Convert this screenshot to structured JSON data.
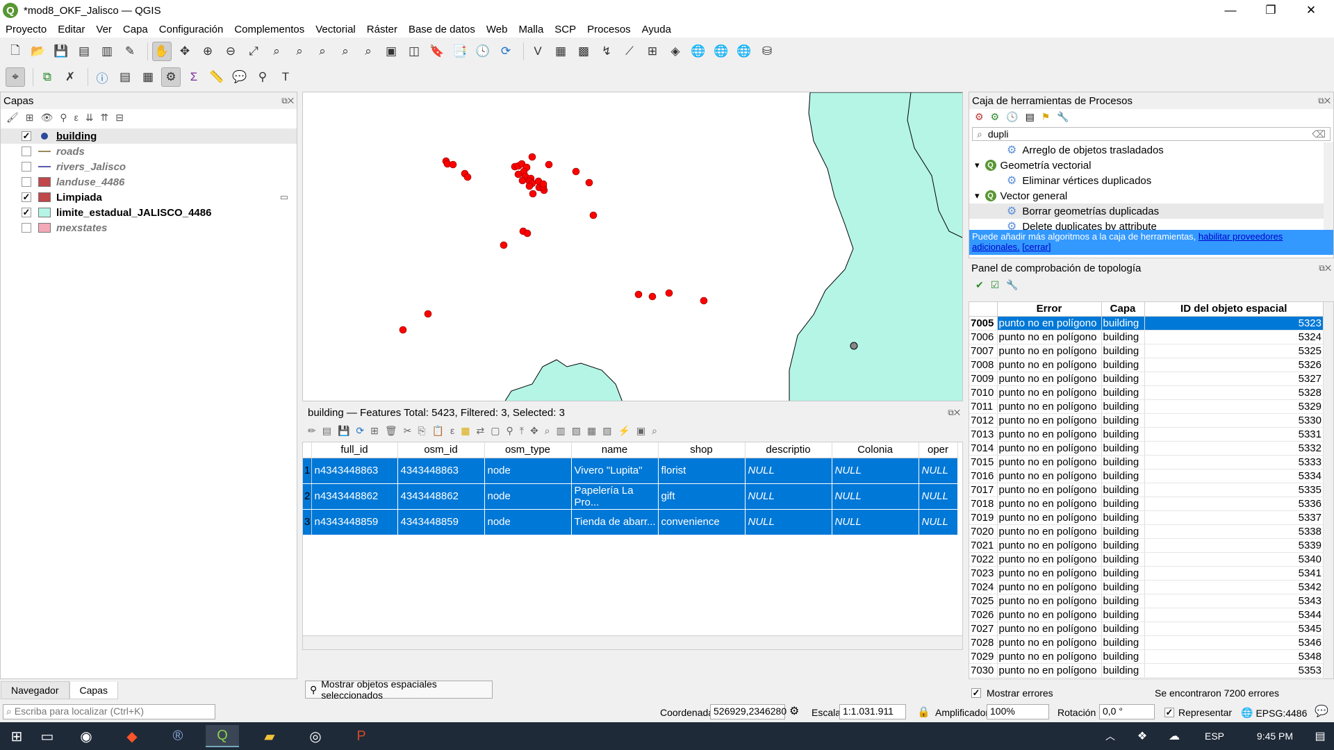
{
  "window": {
    "title": "*mod8_OKF_Jalisco — QGIS",
    "minimize": "—",
    "restore": "❐",
    "close": "✕"
  },
  "menu": [
    "Proyecto",
    "Editar",
    "Ver",
    "Capa",
    "Configuración",
    "Complementos",
    "Vectorial",
    "Ráster",
    "Base de datos",
    "Web",
    "Malla",
    "SCP",
    "Procesos",
    "Ayuda"
  ],
  "layers_panel": {
    "title": "Capas",
    "layers": [
      {
        "name": "building",
        "checked": true,
        "bold": true,
        "italic": false,
        "color": "#2c4a9a",
        "sym": "point"
      },
      {
        "name": "roads",
        "checked": false,
        "bold": true,
        "italic": true,
        "color": "#9b8a5a",
        "sym": "line"
      },
      {
        "name": "rivers_Jalisco",
        "checked": false,
        "bold": true,
        "italic": true,
        "color": "#5a5ab0",
        "sym": "line"
      },
      {
        "name": "landuse_4486",
        "checked": false,
        "bold": true,
        "italic": true,
        "color": "#c0474a",
        "sym": "fill"
      },
      {
        "name": "Limpiada",
        "checked": true,
        "bold": true,
        "italic": false,
        "color": "#c0474a",
        "sym": "fill"
      },
      {
        "name": "limite_estadual_JALISCO_4486",
        "checked": true,
        "bold": true,
        "italic": false,
        "color": "#b4f5e6",
        "sym": "fill"
      },
      {
        "name": "mexstates",
        "checked": false,
        "bold": true,
        "italic": true,
        "color": "#f4a9b8",
        "sym": "fill"
      }
    ],
    "tabs": [
      "Navegador",
      "Capas"
    ]
  },
  "locator": {
    "placeholder": "Escriba para localizar (Ctrl+K)"
  },
  "attribute_table": {
    "title": "building — Features Total: 5423, Filtered: 3, Selected: 3",
    "columns": [
      "full_id",
      "osm_id",
      "osm_type",
      "name",
      "shop",
      "descriptio",
      "Colonia",
      "oper"
    ],
    "rows": [
      {
        "n": "1",
        "cells": [
          "n4343448863",
          "4343448863",
          "node",
          "Vivero \"Lupita\"",
          "florist",
          "NULL",
          "NULL",
          "NULL"
        ]
      },
      {
        "n": "2",
        "cells": [
          "n4343448862",
          "4343448862",
          "node",
          "Papelería La Pro...",
          "gift",
          "NULL",
          "NULL",
          "NULL"
        ]
      },
      {
        "n": "3",
        "cells": [
          "n4343448859",
          "4343448859",
          "node",
          "Tienda de abarr...",
          "convenience",
          "NULL",
          "NULL",
          "NULL"
        ]
      }
    ],
    "filter_button": "Mostrar objetos espaciales seleccionados"
  },
  "processing": {
    "title": "Caja de herramientas de Procesos",
    "search_value": "dupli",
    "tree": [
      {
        "level": 2,
        "label": "Arreglo de objetos trasladados",
        "type": "alg"
      },
      {
        "level": 1,
        "label": "Geometría vectorial",
        "type": "group"
      },
      {
        "level": 2,
        "label": "Eliminar vértices duplicados",
        "type": "alg"
      },
      {
        "level": 1,
        "label": "Vector general",
        "type": "group"
      },
      {
        "level": 2,
        "label": "Borrar geometrías duplicadas",
        "type": "alg"
      },
      {
        "level": 2,
        "label": "Delete duplicates by attribute",
        "type": "alg"
      }
    ],
    "info_text": "Puede añadir más algoritmos a la caja de herramientas, ",
    "info_link1": "habilitar proveedores adicionales.",
    "info_link2": "[cerrar]"
  },
  "topology": {
    "title": "Panel de comprobación de topología",
    "columns": [
      "Error",
      "Capa",
      "ID del objeto espacial"
    ],
    "error_text": "punto no en polígono",
    "layer_text": "building",
    "rows": [
      [
        "7005",
        "5323"
      ],
      [
        "7006",
        "5324"
      ],
      [
        "7007",
        "5325"
      ],
      [
        "7008",
        "5326"
      ],
      [
        "7009",
        "5327"
      ],
      [
        "7010",
        "5328"
      ],
      [
        "7011",
        "5329"
      ],
      [
        "7012",
        "5330"
      ],
      [
        "7013",
        "5331"
      ],
      [
        "7014",
        "5332"
      ],
      [
        "7015",
        "5333"
      ],
      [
        "7016",
        "5334"
      ],
      [
        "7017",
        "5335"
      ],
      [
        "7018",
        "5336"
      ],
      [
        "7019",
        "5337"
      ],
      [
        "7020",
        "5338"
      ],
      [
        "7021",
        "5339"
      ],
      [
        "7022",
        "5340"
      ],
      [
        "7023",
        "5341"
      ],
      [
        "7024",
        "5342"
      ],
      [
        "7025",
        "5343"
      ],
      [
        "7026",
        "5344"
      ],
      [
        "7027",
        "5345"
      ],
      [
        "7028",
        "5346"
      ],
      [
        "7029",
        "5348"
      ],
      [
        "7030",
        "5353"
      ]
    ],
    "show_errors": "Mostrar errores",
    "found": "Se encontraron 7200 errores"
  },
  "status": {
    "coord_label": "Coordenada",
    "coord_value": "526929,2346280",
    "scale_label": "Escala",
    "scale_value": "1:1.031.911",
    "magnifier_label": "Amplificador",
    "magnifier_value": "100%",
    "rotation_label": "Rotación",
    "rotation_value": "0,0 °",
    "render_label": "Representar",
    "crs": "EPSG:4486"
  },
  "taskbar": {
    "lang": "ESP",
    "time": "9:45 PM"
  },
  "colors": {
    "selection": "#0078d7",
    "feature": "#ff0000",
    "jalisco_fill": "#b4f5e6",
    "info_bar": "#3399ff"
  }
}
